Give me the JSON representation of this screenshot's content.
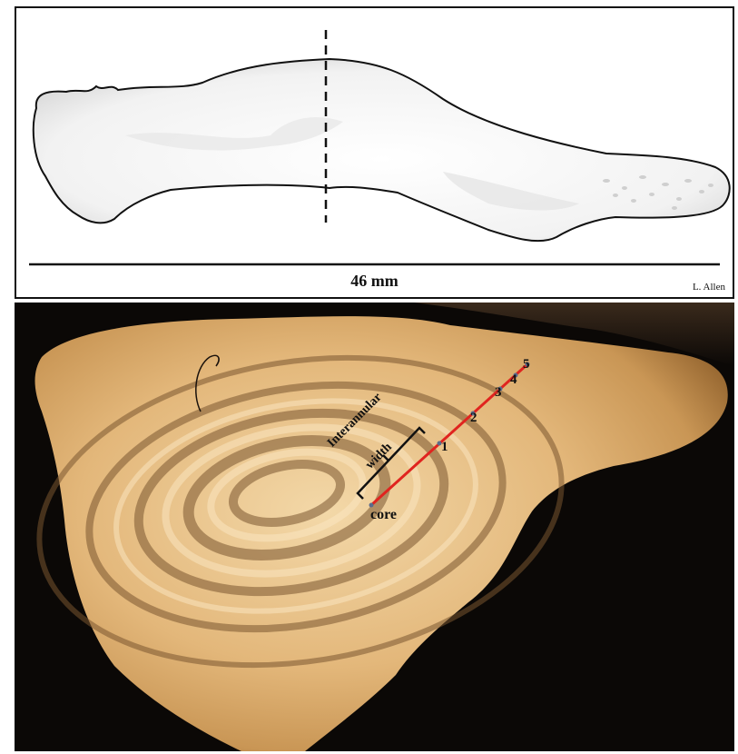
{
  "top_panel": {
    "scale_label": "46 mm",
    "credit": "L. Allen",
    "section_line": "dashed",
    "outline_color": "#111111"
  },
  "bottom_panel": {
    "transect_color": "#e0241f",
    "bracket_label_line1": "Interannular",
    "bracket_label_line2": "width",
    "core_label": "core",
    "annuli": [
      "1",
      "2",
      "3",
      "4",
      "5"
    ]
  }
}
